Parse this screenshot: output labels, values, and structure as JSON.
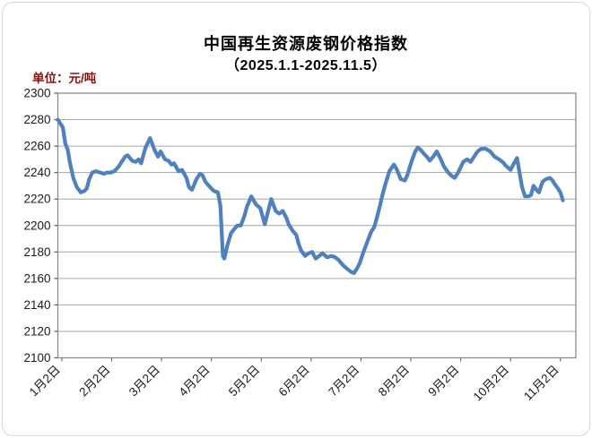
{
  "colors": {
    "line": "#4F81BD",
    "title": "#000000",
    "unit_label": "#8B0F0F",
    "grid": "#A6A6A6",
    "plot_border": "#8C8C8C",
    "tick": "#595959",
    "axis_text": "#1a1a1a",
    "outer_frame": "#d9d9d9"
  },
  "chart_data": {
    "type": "line",
    "title": "中国再生资源废钢价格指数",
    "subtitle": "（2025.1.1-2025.11.5）",
    "unit_label": "单位：元/吨",
    "legend": "none",
    "grid": "horizontal",
    "ylim": [
      2100,
      2300
    ],
    "ytick_step": 20,
    "x_tick_labels": [
      "1月2日",
      "2月2日",
      "3月2日",
      "4月2日",
      "5月2日",
      "6月2日",
      "7月2日",
      "8月2日",
      "9月2日",
      "10月2日",
      "11月2日"
    ],
    "x_axis_note": "x values below are months after the 1月2日 tick (0 = 1月2日, 10 = 11月2日)",
    "series": [
      {
        "points": [
          [
            -0.08,
            2280
          ],
          [
            0.02,
            2274
          ],
          [
            0.07,
            2262
          ],
          [
            0.12,
            2257
          ],
          [
            0.16,
            2248
          ],
          [
            0.23,
            2236
          ],
          [
            0.3,
            2229
          ],
          [
            0.38,
            2225
          ],
          [
            0.45,
            2226
          ],
          [
            0.5,
            2228
          ],
          [
            0.55,
            2235
          ],
          [
            0.61,
            2240
          ],
          [
            0.68,
            2241
          ],
          [
            0.77,
            2240
          ],
          [
            0.84,
            2239
          ],
          [
            0.91,
            2240
          ],
          [
            0.98,
            2240
          ],
          [
            1.05,
            2241
          ],
          [
            1.13,
            2244
          ],
          [
            1.2,
            2248
          ],
          [
            1.27,
            2252
          ],
          [
            1.32,
            2253
          ],
          [
            1.41,
            2249
          ],
          [
            1.48,
            2248
          ],
          [
            1.54,
            2250
          ],
          [
            1.59,
            2247
          ],
          [
            1.68,
            2259
          ],
          [
            1.77,
            2266
          ],
          [
            1.86,
            2257
          ],
          [
            1.93,
            2252
          ],
          [
            1.98,
            2256
          ],
          [
            2.07,
            2250
          ],
          [
            2.14,
            2249
          ],
          [
            2.2,
            2246
          ],
          [
            2.25,
            2247
          ],
          [
            2.34,
            2241
          ],
          [
            2.41,
            2242
          ],
          [
            2.5,
            2236
          ],
          [
            2.55,
            2229
          ],
          [
            2.61,
            2227
          ],
          [
            2.7,
            2235
          ],
          [
            2.77,
            2239
          ],
          [
            2.82,
            2238
          ],
          [
            2.88,
            2233
          ],
          [
            2.95,
            2230
          ],
          [
            3.0,
            2228
          ],
          [
            3.05,
            2226
          ],
          [
            3.13,
            2225
          ],
          [
            3.18,
            2215
          ],
          [
            3.23,
            2177
          ],
          [
            3.26,
            2175
          ],
          [
            3.32,
            2185
          ],
          [
            3.39,
            2194
          ],
          [
            3.45,
            2197
          ],
          [
            3.52,
            2200
          ],
          [
            3.59,
            2200
          ],
          [
            3.66,
            2207
          ],
          [
            3.71,
            2214
          ],
          [
            3.8,
            2222
          ],
          [
            3.89,
            2216
          ],
          [
            3.98,
            2213
          ],
          [
            4.07,
            2201
          ],
          [
            4.2,
            2220
          ],
          [
            4.29,
            2211
          ],
          [
            4.36,
            2209
          ],
          [
            4.43,
            2211
          ],
          [
            4.5,
            2206
          ],
          [
            4.55,
            2201
          ],
          [
            4.63,
            2196
          ],
          [
            4.7,
            2193
          ],
          [
            4.75,
            2186
          ],
          [
            4.8,
            2181
          ],
          [
            4.88,
            2177
          ],
          [
            4.95,
            2179
          ],
          [
            5.02,
            2180
          ],
          [
            5.09,
            2175
          ],
          [
            5.16,
            2177
          ],
          [
            5.23,
            2179
          ],
          [
            5.32,
            2176
          ],
          [
            5.41,
            2177
          ],
          [
            5.48,
            2176
          ],
          [
            5.55,
            2174
          ],
          [
            5.64,
            2170
          ],
          [
            5.73,
            2167
          ],
          [
            5.8,
            2165
          ],
          [
            5.86,
            2164
          ],
          [
            5.93,
            2168
          ],
          [
            5.98,
            2172
          ],
          [
            6.05,
            2180
          ],
          [
            6.13,
            2188
          ],
          [
            6.2,
            2195
          ],
          [
            6.27,
            2199
          ],
          [
            6.32,
            2206
          ],
          [
            6.38,
            2215
          ],
          [
            6.43,
            2223
          ],
          [
            6.48,
            2230
          ],
          [
            6.57,
            2241
          ],
          [
            6.66,
            2246
          ],
          [
            6.71,
            2243
          ],
          [
            6.8,
            2235
          ],
          [
            6.88,
            2234
          ],
          [
            6.93,
            2238
          ],
          [
            7.02,
            2249
          ],
          [
            7.09,
            2256
          ],
          [
            7.14,
            2259
          ],
          [
            7.2,
            2257
          ],
          [
            7.27,
            2254
          ],
          [
            7.32,
            2252
          ],
          [
            7.38,
            2249
          ],
          [
            7.45,
            2252
          ],
          [
            7.52,
            2256
          ],
          [
            7.59,
            2251
          ],
          [
            7.66,
            2245
          ],
          [
            7.73,
            2241
          ],
          [
            7.8,
            2238
          ],
          [
            7.88,
            2236
          ],
          [
            7.95,
            2240
          ],
          [
            8.05,
            2248
          ],
          [
            8.13,
            2250
          ],
          [
            8.2,
            2248
          ],
          [
            8.27,
            2252
          ],
          [
            8.34,
            2256
          ],
          [
            8.41,
            2258
          ],
          [
            8.5,
            2258
          ],
          [
            8.59,
            2256
          ],
          [
            8.68,
            2252
          ],
          [
            8.77,
            2250
          ],
          [
            8.84,
            2248
          ],
          [
            8.91,
            2245
          ],
          [
            9.0,
            2242
          ],
          [
            9.07,
            2247
          ],
          [
            9.13,
            2251
          ],
          [
            9.18,
            2240
          ],
          [
            9.23,
            2229
          ],
          [
            9.29,
            2222
          ],
          [
            9.36,
            2222
          ],
          [
            9.41,
            2223
          ],
          [
            9.46,
            2230
          ],
          [
            9.52,
            2227
          ],
          [
            9.57,
            2225
          ],
          [
            9.64,
            2233
          ],
          [
            9.71,
            2235
          ],
          [
            9.79,
            2236
          ],
          [
            9.84,
            2234
          ],
          [
            9.89,
            2231
          ],
          [
            9.95,
            2228
          ],
          [
            10.0,
            2225
          ],
          [
            10.05,
            2219
          ]
        ]
      }
    ]
  }
}
